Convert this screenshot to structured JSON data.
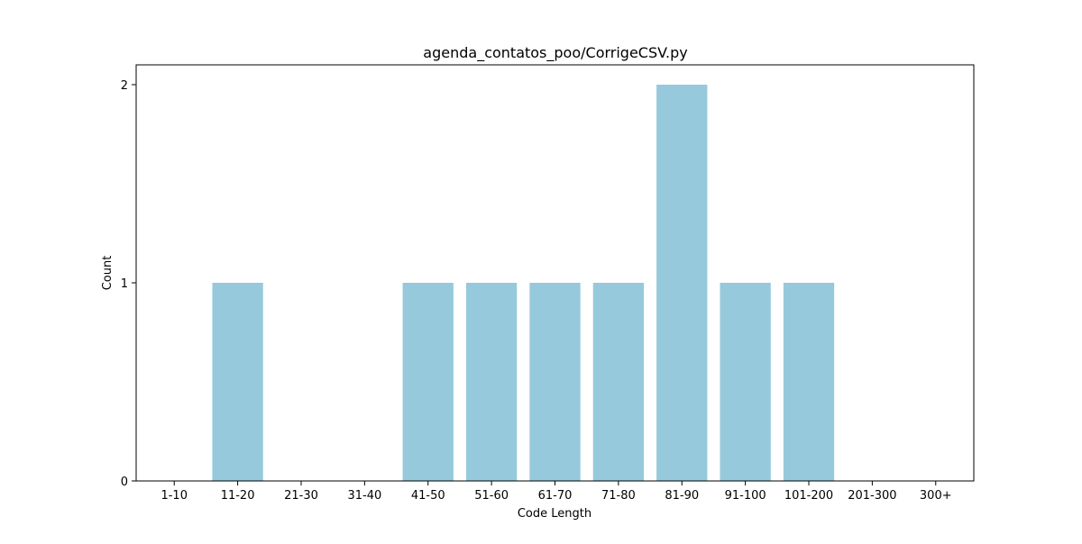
{
  "chart_data": {
    "type": "bar",
    "title": "agenda_contatos_poo/CorrigeCSV.py",
    "xlabel": "Code Length",
    "ylabel": "Count",
    "categories": [
      "1-10",
      "11-20",
      "21-30",
      "31-40",
      "41-50",
      "51-60",
      "61-70",
      "71-80",
      "81-90",
      "91-100",
      "101-200",
      "201-300",
      "300+"
    ],
    "values": [
      0,
      1,
      0,
      0,
      1,
      1,
      1,
      1,
      2,
      1,
      1,
      0,
      0
    ],
    "yticks": [
      "0",
      "1",
      "2"
    ],
    "ylim": [
      0,
      2.1
    ],
    "grid": false,
    "bar_color": "#96c9dc"
  }
}
